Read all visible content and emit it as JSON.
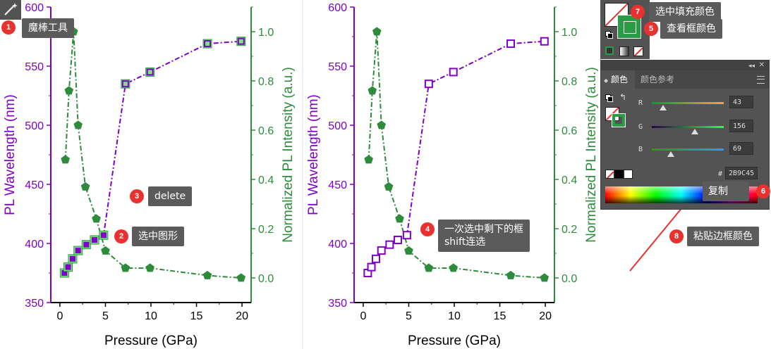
{
  "chart_data": [
    {
      "type": "line",
      "xlabel": "Pressure (GPa)",
      "ylabel": "PL Wavelength (nm)",
      "y2label": "Normalized PL Intensity (a.u.)",
      "xlim": [
        -1,
        21
      ],
      "ylim": [
        350,
        600
      ],
      "y2lim": [
        -0.1,
        1.1
      ],
      "xticks": [
        "0",
        "5",
        "10",
        "15",
        "20"
      ],
      "yticks": [
        "350",
        "400",
        "450",
        "500",
        "550",
        "600"
      ],
      "y2ticks": [
        "0.0",
        "0.2",
        "0.4",
        "0.6",
        "0.8",
        "1.0"
      ],
      "series": [
        {
          "axis": "left",
          "color": "#8000c8",
          "style": "dash-dot",
          "marker": "square",
          "x": [
            0.5,
            0.9,
            1.4,
            2.0,
            2.9,
            3.8,
            4.8,
            7.2,
            9.9,
            16.2,
            19.9
          ],
          "y": [
            375,
            380,
            387,
            394,
            399,
            403,
            407,
            535,
            545,
            569,
            571
          ]
        },
        {
          "axis": "right",
          "color": "#2e8b3c",
          "style": "dash-dot",
          "marker": "pentagon",
          "x": [
            0.6,
            1.0,
            1.5,
            2.0,
            2.8,
            4.0,
            5.0,
            7.2,
            9.9,
            16.2,
            19.9
          ],
          "y": [
            0.48,
            0.76,
            1.0,
            0.62,
            0.37,
            0.24,
            0.11,
            0.04,
            0.04,
            0.01,
            0.0
          ]
        }
      ]
    },
    {
      "type": "line",
      "xlabel": "Pressure (GPa)",
      "ylabel": "PL Wavelength (nm)",
      "y2label": "Normalized PL Intensity (a.u.)",
      "xlim": [
        -1,
        21
      ],
      "ylim": [
        350,
        600
      ],
      "y2lim": [
        -0.1,
        1.1
      ],
      "xticks": [
        "0",
        "5",
        "10",
        "15",
        "20"
      ],
      "yticks": [
        "350",
        "400",
        "450",
        "500",
        "550",
        "600"
      ],
      "y2ticks": [
        "0.0",
        "0.2",
        "0.4",
        "0.6",
        "0.8",
        "1.0"
      ],
      "series": [
        {
          "axis": "left",
          "color": "#8000c8",
          "style": "dash-dot",
          "marker": "square",
          "x": [
            0.5,
            0.9,
            1.4,
            2.0,
            2.9,
            3.8,
            4.8,
            7.2,
            9.9,
            16.2,
            19.9
          ],
          "y": [
            375,
            380,
            387,
            394,
            399,
            403,
            407,
            535,
            545,
            569,
            571
          ]
        },
        {
          "axis": "right",
          "color": "#2e8b3c",
          "style": "dash-dot",
          "marker": "pentagon",
          "x": [
            0.6,
            1.0,
            1.5,
            2.0,
            2.8,
            4.0,
            5.0,
            7.2,
            9.9,
            16.2,
            19.9
          ],
          "y": [
            0.48,
            0.76,
            1.0,
            0.62,
            0.37,
            0.24,
            0.11,
            0.04,
            0.04,
            0.01,
            0.0
          ]
        }
      ]
    }
  ],
  "callouts": {
    "c1": {
      "num": "1",
      "text": "魔棒工具"
    },
    "c2": {
      "num": "2",
      "text": "选中图形"
    },
    "c3": {
      "num": "3",
      "text": "delete"
    },
    "c4": {
      "num": "4",
      "line1": "一次选中剩下的框",
      "line2": "shift连选"
    },
    "c5": {
      "num": "5",
      "text": "查看框颜色"
    },
    "c6": {
      "num": "6",
      "text": "复制"
    },
    "c7": {
      "num": "7",
      "text": "选中填充颜色"
    },
    "c8": {
      "num": "8",
      "text": "粘贴边框颜色"
    }
  },
  "color_panel": {
    "tab_color": "颜色",
    "tab_reference": "颜色参考",
    "r_label": "R",
    "r_value": "43",
    "g_label": "G",
    "g_value": "156",
    "b_label": "B",
    "b_value": "69",
    "hash": "#",
    "hex_value": "2B9C45",
    "stroke_color": "#2b9c45"
  },
  "colors": {
    "purple": "#8000c8",
    "green": "#2e8b3c",
    "badge_red": "#e8322f",
    "callout_bg": "#5b5b5b",
    "panel_bg": "#535353"
  },
  "icons": {
    "tool": "magic-wand-icon",
    "menu": "hamburger-menu-icon",
    "swap": "swap-arrow-icon",
    "collapse": "double-chevron-icon",
    "close": "close-icon"
  }
}
